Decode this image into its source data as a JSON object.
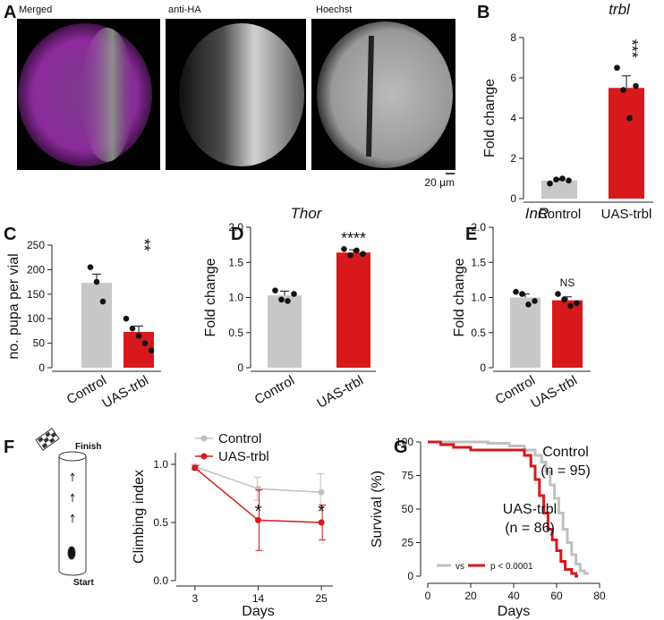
{
  "figure": {
    "panels": [
      "A",
      "B",
      "C",
      "D",
      "E",
      "F",
      "G"
    ],
    "image_labels": [
      "Merged",
      "anti-HA",
      "Hoechst"
    ],
    "scale_bar": "20 µm",
    "diagram": {
      "finish": "Finish",
      "start": "Start"
    }
  },
  "chart_data": [
    {
      "type": "bar",
      "title": "trbl",
      "y_label": "Fold change",
      "categories": [
        "Control",
        "UAS-trbl"
      ],
      "colors": [
        "#c8c8c8",
        "#d7191c"
      ],
      "values": [
        0.9,
        5.5
      ],
      "errors": [
        0.1,
        0.6
      ],
      "points": [
        [
          0.75,
          0.95,
          1.0,
          0.9
        ],
        [
          6.5,
          5.4,
          4.0,
          5.6
        ]
      ],
      "annotation": "***",
      "annotation_rotated": true,
      "ylim": [
        0,
        8
      ],
      "yticks": [
        0,
        2,
        4,
        6,
        8
      ]
    },
    {
      "type": "bar",
      "y_label": "no. pupa per vial",
      "categories": [
        "Control",
        "UAS-trbl"
      ],
      "colors": [
        "#c8c8c8",
        "#d7191c"
      ],
      "values": [
        173,
        73
      ],
      "errors": [
        18,
        12
      ],
      "points": [
        [
          205,
          175,
          135
        ],
        [
          100,
          80,
          65,
          50,
          35
        ]
      ],
      "annotation": "**",
      "annotation_rotated": true,
      "ylim": [
        0,
        250
      ],
      "yticks": [
        0,
        50,
        100,
        150,
        200,
        250
      ]
    },
    {
      "type": "bar",
      "title": "Thor",
      "y_label": "Fold change",
      "categories": [
        "Control",
        "UAS-trbl"
      ],
      "colors": [
        "#c8c8c8",
        "#d7191c"
      ],
      "values": [
        1.03,
        1.64
      ],
      "errors": [
        0.06,
        0.04
      ],
      "points": [
        [
          1.1,
          0.97,
          0.95,
          1.05
        ],
        [
          1.69,
          1.6,
          1.67,
          1.62
        ]
      ],
      "annotation": "****",
      "annotation_rotated": false,
      "ylim": [
        0,
        2
      ],
      "yticks": [
        0,
        0.5,
        {
          "value": 1,
          "label": "1.0"
        },
        1.5,
        {
          "value": 2,
          "label": "2.0"
        }
      ]
    },
    {
      "type": "bar",
      "title": "InR",
      "y_label": "Fold change",
      "categories": [
        "Control",
        "UAS-trbl"
      ],
      "colors": [
        "#c8c8c8",
        "#d7191c"
      ],
      "values": [
        1.0,
        0.96
      ],
      "errors": [
        0.05,
        0.05
      ],
      "points": [
        [
          1.08,
          1.05,
          0.9,
          0.95
        ],
        [
          1.05,
          0.97,
          0.88,
          0.92
        ]
      ],
      "annotation": "NS",
      "annotation_rotated": false,
      "ylim": [
        0,
        2
      ],
      "yticks": [
        0,
        0.5,
        {
          "value": 1,
          "label": "1.0"
        },
        1.5,
        {
          "value": 2,
          "label": "2.0"
        }
      ]
    },
    {
      "type": "line",
      "x_label": "Days",
      "y_label": "Climbing index",
      "x": [
        3,
        14,
        25
      ],
      "legend": "top",
      "series": [
        {
          "name": "Control",
          "color": "#c0c0c0",
          "values": [
            0.98,
            0.79,
            0.76
          ],
          "errors": [
            0.02,
            0.1,
            0.16
          ]
        },
        {
          "name": "UAS-trbl",
          "color": "#d7191c",
          "values": [
            0.97,
            0.52,
            0.5
          ],
          "errors": [
            0.02,
            0.26,
            0.15
          ]
        }
      ],
      "annotations": [
        {
          "x": 14,
          "text": "*"
        },
        {
          "x": 25,
          "text": "*"
        }
      ],
      "xlim": [
        1,
        27
      ],
      "xticks": [
        3,
        14,
        25
      ],
      "ylim": [
        0,
        1.1
      ],
      "yticks": [
        {
          "value": 0,
          "label": "0.0"
        },
        0.5,
        {
          "value": 1,
          "label": "1.0"
        }
      ]
    },
    {
      "type": "step",
      "x_label": "Days",
      "y_label": "Survival (%)",
      "legend_text": [
        "vs",
        "p < 0.0001"
      ],
      "series": [
        {
          "name": "Control",
          "n_label": "(n = 95)",
          "color": "#c0c0c0",
          "x": [
            0,
            28,
            28,
            38,
            38,
            45,
            45,
            50,
            50,
            53,
            53,
            55,
            55,
            57,
            57,
            59,
            59,
            61,
            61,
            63,
            63,
            65,
            65,
            67,
            67,
            69,
            69,
            71,
            71,
            73,
            73,
            75
          ],
          "values": [
            100,
            100,
            99,
            99,
            97,
            97,
            94,
            94,
            90,
            90,
            85,
            85,
            78,
            78,
            68,
            68,
            58,
            58,
            47,
            47,
            35,
            35,
            25,
            25,
            16,
            16,
            9,
            9,
            4,
            4,
            2,
            2
          ]
        },
        {
          "name": "UAS-trbl",
          "n_label": "(n = 86)",
          "color": "#d7191c",
          "x": [
            0,
            6,
            6,
            12,
            12,
            20,
            20,
            45,
            45,
            48,
            48,
            50,
            50,
            52,
            52,
            54,
            54,
            56,
            56,
            58,
            58,
            60,
            60,
            62,
            62,
            64,
            64,
            67,
            67,
            69,
            69,
            70
          ],
          "values": [
            100,
            100,
            98,
            98,
            96,
            96,
            94,
            94,
            90,
            90,
            82,
            82,
            72,
            72,
            60,
            60,
            47,
            47,
            35,
            35,
            27,
            27,
            19,
            19,
            11,
            11,
            5,
            5,
            2,
            2,
            0,
            0
          ]
        }
      ],
      "xlim": [
        0,
        80
      ],
      "xticks": [
        0,
        20,
        40,
        60,
        80
      ],
      "ylim": [
        0,
        100
      ],
      "yticks": [
        0,
        25,
        50,
        75,
        100
      ]
    }
  ]
}
